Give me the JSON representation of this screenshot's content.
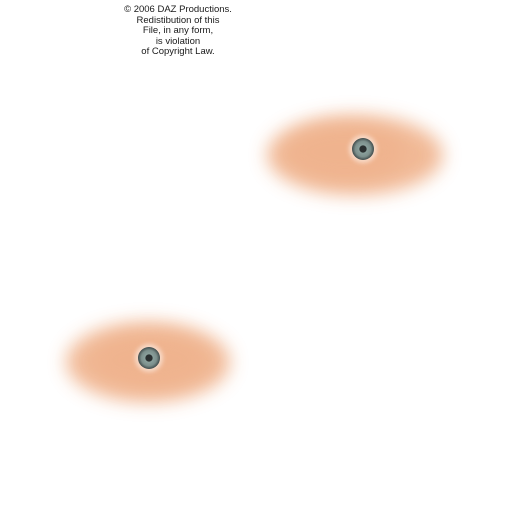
{
  "copyright": {
    "lines": [
      "© 2006 DAZ Productions.",
      "Redistibution of this",
      "File, in any form,",
      "is violation",
      "of Copyright Law."
    ]
  },
  "colors": {
    "background": "#ffffff",
    "skin": "#f0b48e",
    "iris": "#7c8f8c",
    "pupil": "#2a2f30"
  },
  "regions": [
    {
      "name": "eye-region-right",
      "icon": "eye-icon"
    },
    {
      "name": "eye-region-left",
      "icon": "eye-icon"
    }
  ]
}
